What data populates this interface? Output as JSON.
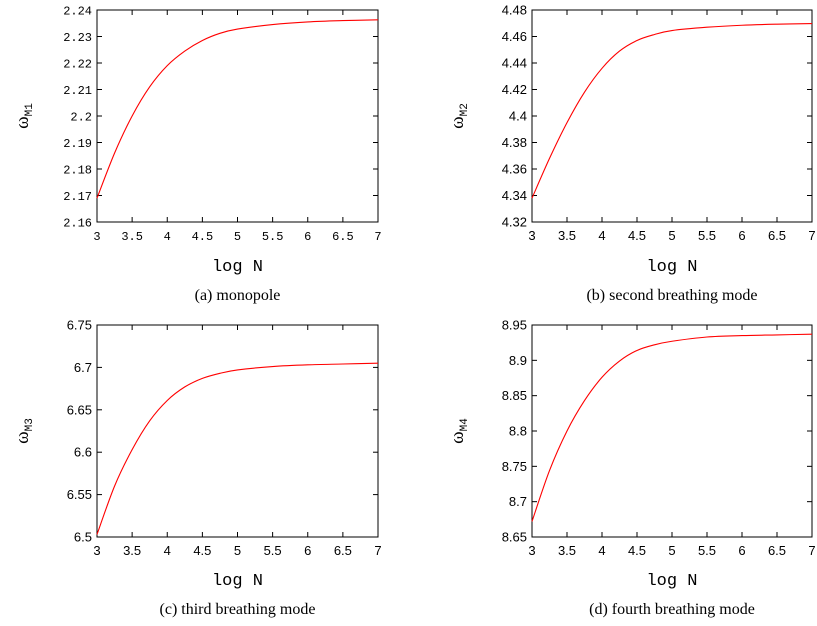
{
  "chart_data": [
    {
      "type": "line",
      "caption": "(a) monopole",
      "xlabel": "log N",
      "ylabel": {
        "symbol": "ω",
        "subscript": "M1"
      },
      "xlim": [
        3,
        7
      ],
      "ylim": [
        2.16,
        2.24
      ],
      "xticks": [
        "3",
        "3.5",
        "4",
        "4.5",
        "5",
        "5.5",
        "6",
        "6.5",
        "7"
      ],
      "yticks": [
        "2.16",
        "2.17",
        "2.18",
        "2.19",
        "2.2",
        "2.21",
        "2.22",
        "2.23",
        "2.24"
      ],
      "tick_font": "mono",
      "grid": false,
      "color": "#ff0000",
      "series": [
        {
          "x": [
            3,
            3.25,
            3.5,
            3.75,
            4,
            4.25,
            4.5,
            4.75,
            5,
            5.5,
            6,
            6.5,
            7
          ],
          "y": [
            2.169,
            2.186,
            2.2,
            2.211,
            2.219,
            2.2245,
            2.2285,
            2.2312,
            2.2328,
            2.2345,
            2.2355,
            2.236,
            2.2363
          ]
        }
      ]
    },
    {
      "type": "line",
      "caption": "(b) second breathing mode",
      "xlabel": "log N",
      "ylabel": {
        "symbol": "ω",
        "subscript": "M2"
      },
      "xlim": [
        3,
        7
      ],
      "ylim": [
        4.32,
        4.48
      ],
      "xticks": [
        "3",
        "3.5",
        "4",
        "4.5",
        "5",
        "5.5",
        "6",
        "6.5",
        "7"
      ],
      "yticks": [
        "4.32",
        "4.34",
        "4.36",
        "4.38",
        "4.4",
        "4.42",
        "4.44",
        "4.46",
        "4.48"
      ],
      "tick_font": "sans",
      "grid": false,
      "color": "#ff0000",
      "series": [
        {
          "x": [
            3,
            3.25,
            3.5,
            3.75,
            4,
            4.25,
            4.5,
            4.75,
            5,
            5.5,
            6,
            6.5,
            7
          ],
          "y": [
            4.338,
            4.368,
            4.395,
            4.418,
            4.436,
            4.449,
            4.457,
            4.4615,
            4.4645,
            4.467,
            4.4685,
            4.4693,
            4.4698
          ]
        }
      ]
    },
    {
      "type": "line",
      "caption": "(c) third breathing mode",
      "xlabel": "log N",
      "ylabel": {
        "symbol": "ω",
        "subscript": "M3"
      },
      "xlim": [
        3,
        7
      ],
      "ylim": [
        6.5,
        6.75
      ],
      "xticks": [
        "3",
        "3.5",
        "4",
        "4.5",
        "5",
        "5.5",
        "6",
        "6.5",
        "7"
      ],
      "yticks": [
        "6.5",
        "6.55",
        "6.6",
        "6.65",
        "6.7",
        "6.75"
      ],
      "tick_font": "sans",
      "grid": false,
      "color": "#ff0000",
      "series": [
        {
          "x": [
            3,
            3.25,
            3.5,
            3.75,
            4,
            4.25,
            4.5,
            4.75,
            5,
            5.5,
            6,
            6.5,
            7
          ],
          "y": [
            6.503,
            6.56,
            6.603,
            6.637,
            6.661,
            6.677,
            6.687,
            6.693,
            6.697,
            6.701,
            6.703,
            6.704,
            6.705
          ]
        }
      ]
    },
    {
      "type": "line",
      "caption": "(d) fourth breathing mode",
      "xlabel": "log N",
      "ylabel": {
        "symbol": "ω",
        "subscript": "M4"
      },
      "xlim": [
        3,
        7
      ],
      "ylim": [
        8.65,
        8.95
      ],
      "xticks": [
        "3",
        "3.5",
        "4",
        "4.5",
        "5",
        "5.5",
        "6",
        "6.5",
        "7"
      ],
      "yticks": [
        "8.65",
        "8.7",
        "8.75",
        "8.8",
        "8.85",
        "8.9",
        "8.95"
      ],
      "tick_font": "sans",
      "grid": false,
      "color": "#ff0000",
      "series": [
        {
          "x": [
            3,
            3.25,
            3.5,
            3.75,
            4,
            4.25,
            4.5,
            4.75,
            5,
            5.5,
            6,
            6.5,
            7
          ],
          "y": [
            8.672,
            8.744,
            8.8,
            8.843,
            8.876,
            8.899,
            8.914,
            8.922,
            8.927,
            8.933,
            8.935,
            8.936,
            8.937
          ]
        }
      ]
    }
  ]
}
